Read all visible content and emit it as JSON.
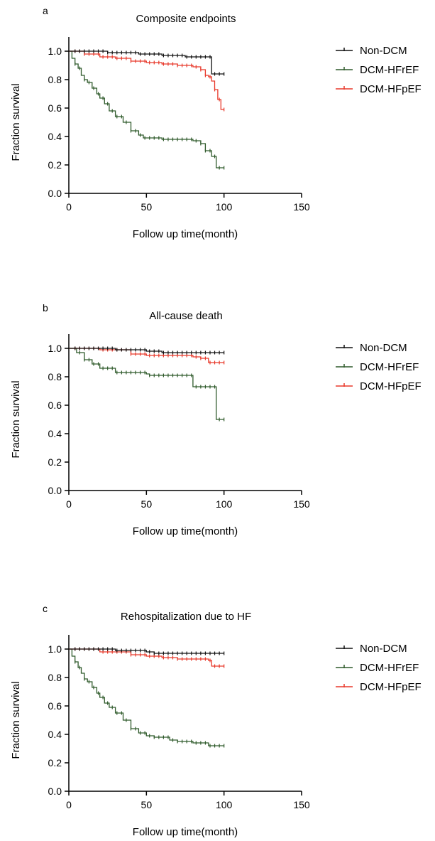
{
  "colors": {
    "Non-DCM": "#111111",
    "DCM-HFrEF": "#2f5a2b",
    "DCM-HFpEF": "#e8392b"
  },
  "chart_data": [
    {
      "type": "line",
      "letter": "a",
      "title": "Composite endpoints",
      "xlabel": "Follow up time(month)",
      "ylabel": "Fraction survival",
      "xlim": [
        0,
        150
      ],
      "ylim": [
        0,
        1.0
      ],
      "x_ticks": [
        "0",
        "50",
        "100",
        "150"
      ],
      "y_ticks": [
        "0.0",
        "0.2",
        "0.4",
        "0.6",
        "0.8",
        "1.0"
      ],
      "legend_position": "right",
      "series": [
        {
          "name": "Non-DCM",
          "points": [
            [
              0,
              1.0
            ],
            [
              20,
              1.0
            ],
            [
              25,
              0.99
            ],
            [
              40,
              0.99
            ],
            [
              45,
              0.98
            ],
            [
              55,
              0.98
            ],
            [
              60,
              0.97
            ],
            [
              70,
              0.97
            ],
            [
              75,
              0.96
            ],
            [
              92,
              0.96
            ],
            [
              92,
              0.84
            ],
            [
              100,
              0.84
            ]
          ]
        },
        {
          "name": "DCM-HFrEF",
          "points": [
            [
              0,
              1.0
            ],
            [
              2,
              0.95
            ],
            [
              4,
              0.91
            ],
            [
              6,
              0.88
            ],
            [
              8,
              0.83
            ],
            [
              10,
              0.8
            ],
            [
              12,
              0.78
            ],
            [
              15,
              0.74
            ],
            [
              18,
              0.7
            ],
            [
              20,
              0.67
            ],
            [
              23,
              0.63
            ],
            [
              26,
              0.58
            ],
            [
              30,
              0.54
            ],
            [
              35,
              0.5
            ],
            [
              40,
              0.44
            ],
            [
              45,
              0.41
            ],
            [
              48,
              0.39
            ],
            [
              55,
              0.39
            ],
            [
              60,
              0.38
            ],
            [
              75,
              0.38
            ],
            [
              80,
              0.37
            ],
            [
              85,
              0.35
            ],
            [
              88,
              0.3
            ],
            [
              92,
              0.26
            ],
            [
              95,
              0.18
            ],
            [
              100,
              0.18
            ]
          ]
        },
        {
          "name": "DCM-HFpEF",
          "points": [
            [
              0,
              1.0
            ],
            [
              10,
              0.98
            ],
            [
              20,
              0.96
            ],
            [
              30,
              0.95
            ],
            [
              40,
              0.93
            ],
            [
              50,
              0.92
            ],
            [
              60,
              0.91
            ],
            [
              70,
              0.9
            ],
            [
              80,
              0.89
            ],
            [
              85,
              0.87
            ],
            [
              88,
              0.83
            ],
            [
              90,
              0.82
            ],
            [
              92,
              0.79
            ],
            [
              94,
              0.73
            ],
            [
              96,
              0.66
            ],
            [
              98,
              0.59
            ],
            [
              100,
              0.59
            ]
          ]
        }
      ]
    },
    {
      "type": "line",
      "letter": "b",
      "title": "All-cause death",
      "xlabel": "Follow up time(month)",
      "ylabel": "Fraction survival",
      "xlim": [
        0,
        150
      ],
      "ylim": [
        0,
        1.0
      ],
      "x_ticks": [
        "0",
        "50",
        "100",
        "150"
      ],
      "y_ticks": [
        "0.0",
        "0.2",
        "0.4",
        "0.6",
        "0.8",
        "1.0"
      ],
      "legend_position": "right",
      "series": [
        {
          "name": "Non-DCM",
          "points": [
            [
              0,
              1.0
            ],
            [
              20,
              1.0
            ],
            [
              30,
              0.99
            ],
            [
              50,
              0.98
            ],
            [
              60,
              0.97
            ],
            [
              100,
              0.97
            ]
          ]
        },
        {
          "name": "DCM-HFrEF",
          "points": [
            [
              0,
              1.0
            ],
            [
              5,
              0.97
            ],
            [
              10,
              0.92
            ],
            [
              15,
              0.89
            ],
            [
              20,
              0.86
            ],
            [
              30,
              0.83
            ],
            [
              40,
              0.83
            ],
            [
              50,
              0.82
            ],
            [
              52,
              0.81
            ],
            [
              78,
              0.81
            ],
            [
              80,
              0.73
            ],
            [
              95,
              0.73
            ],
            [
              95,
              0.5
            ],
            [
              100,
              0.5
            ]
          ]
        },
        {
          "name": "DCM-HFpEF",
          "points": [
            [
              0,
              1.0
            ],
            [
              20,
              0.99
            ],
            [
              40,
              0.96
            ],
            [
              50,
              0.95
            ],
            [
              75,
              0.95
            ],
            [
              80,
              0.94
            ],
            [
              85,
              0.93
            ],
            [
              90,
              0.9
            ],
            [
              100,
              0.9
            ]
          ]
        }
      ]
    },
    {
      "type": "line",
      "letter": "c",
      "title": "Rehospitalization due to HF",
      "xlabel": "Follow up time(month)",
      "ylabel": "Fraction survival",
      "xlim": [
        0,
        150
      ],
      "ylim": [
        0,
        1.0
      ],
      "x_ticks": [
        "0",
        "50",
        "100",
        "150"
      ],
      "y_ticks": [
        "0.0",
        "0.2",
        "0.4",
        "0.6",
        "0.8",
        "1.0"
      ],
      "legend_position": "right",
      "series": [
        {
          "name": "Non-DCM",
          "points": [
            [
              0,
              1.0
            ],
            [
              20,
              1.0
            ],
            [
              30,
              0.99
            ],
            [
              50,
              0.98
            ],
            [
              55,
              0.97
            ],
            [
              100,
              0.97
            ]
          ]
        },
        {
          "name": "DCM-HFrEF",
          "points": [
            [
              0,
              1.0
            ],
            [
              2,
              0.95
            ],
            [
              4,
              0.91
            ],
            [
              6,
              0.87
            ],
            [
              8,
              0.83
            ],
            [
              10,
              0.79
            ],
            [
              12,
              0.77
            ],
            [
              15,
              0.73
            ],
            [
              18,
              0.69
            ],
            [
              20,
              0.66
            ],
            [
              23,
              0.62
            ],
            [
              26,
              0.59
            ],
            [
              30,
              0.55
            ],
            [
              35,
              0.5
            ],
            [
              40,
              0.44
            ],
            [
              45,
              0.41
            ],
            [
              50,
              0.39
            ],
            [
              55,
              0.38
            ],
            [
              60,
              0.38
            ],
            [
              65,
              0.36
            ],
            [
              70,
              0.35
            ],
            [
              80,
              0.34
            ],
            [
              90,
              0.32
            ],
            [
              100,
              0.32
            ]
          ]
        },
        {
          "name": "DCM-HFpEF",
          "points": [
            [
              0,
              1.0
            ],
            [
              20,
              0.98
            ],
            [
              40,
              0.96
            ],
            [
              50,
              0.95
            ],
            [
              60,
              0.94
            ],
            [
              70,
              0.93
            ],
            [
              90,
              0.92
            ],
            [
              92,
              0.88
            ],
            [
              100,
              0.88
            ]
          ]
        }
      ]
    }
  ]
}
